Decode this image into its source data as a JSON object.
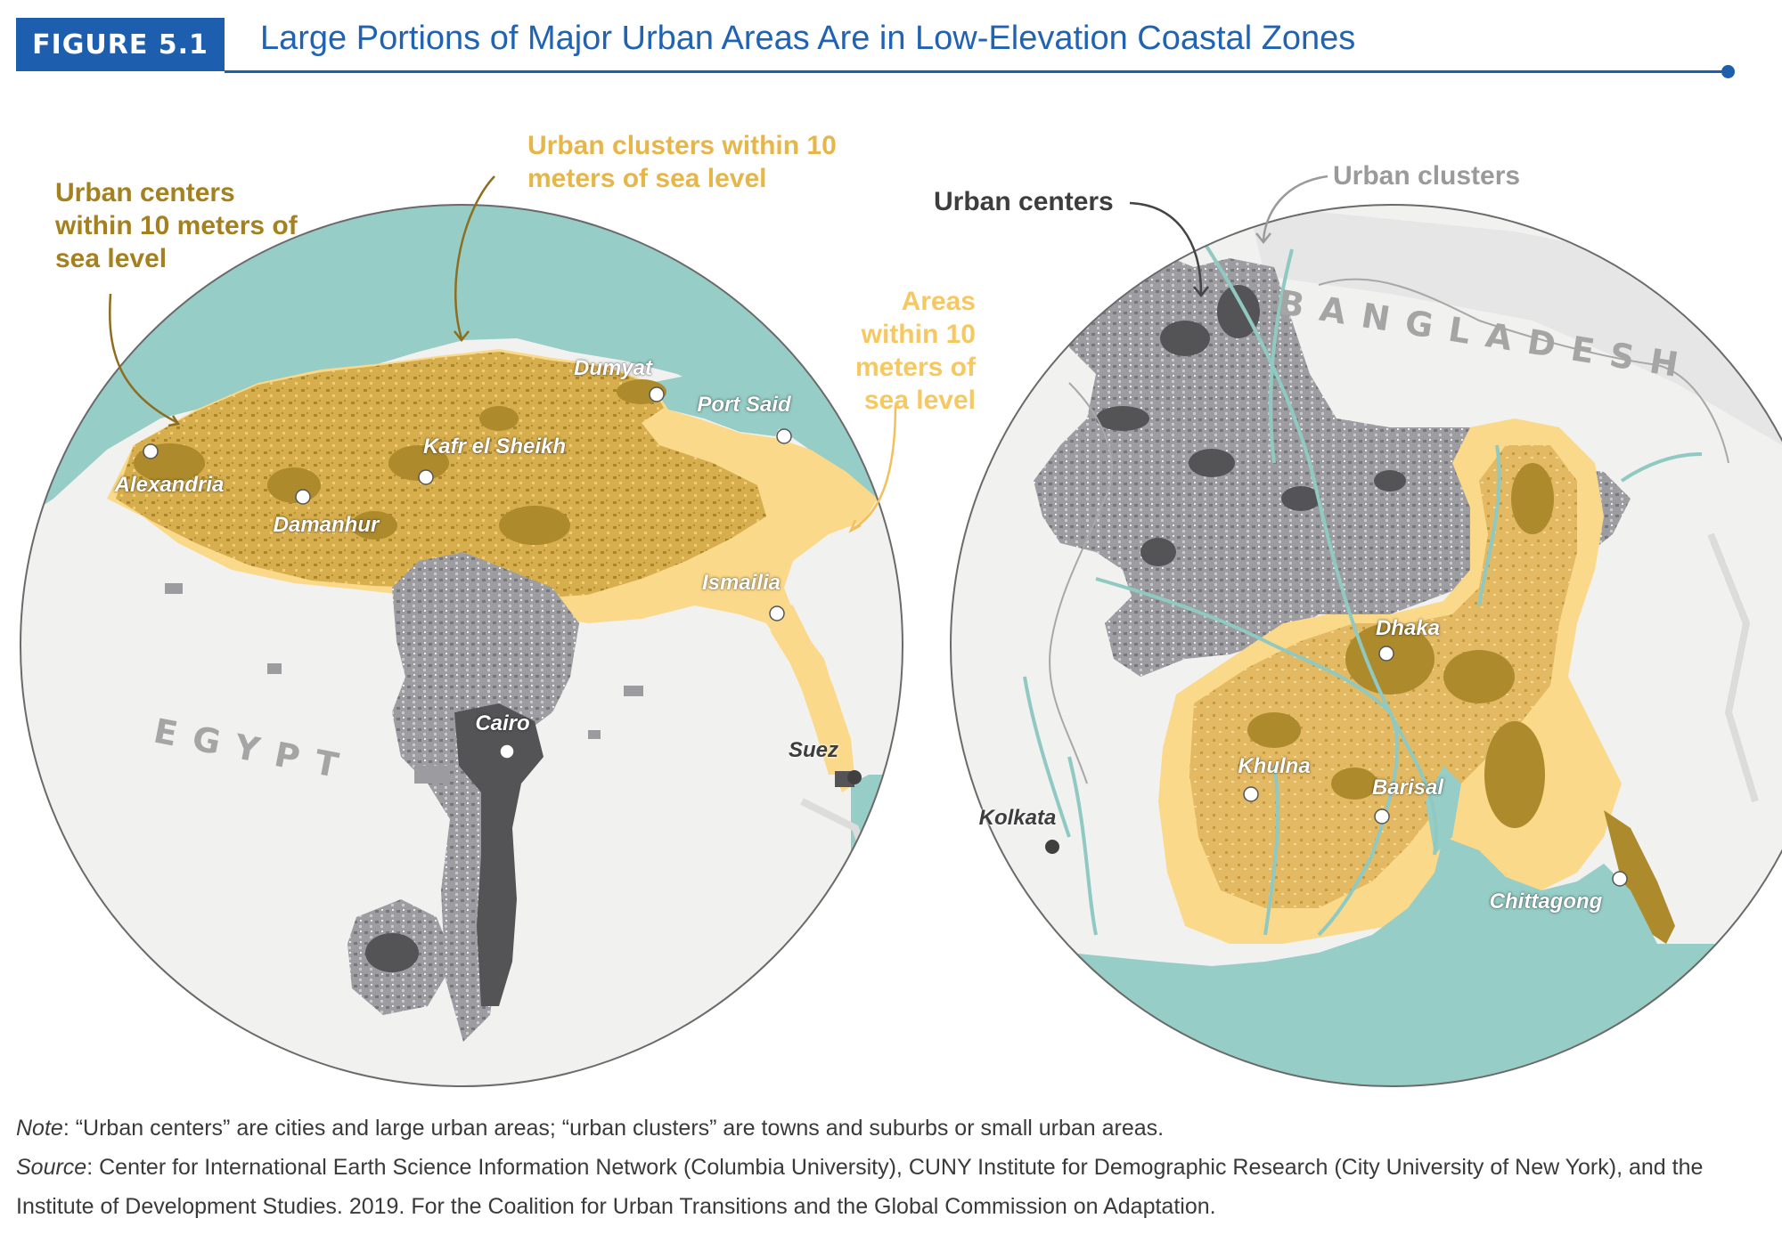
{
  "header": {
    "badge": "FIGURE 5.1",
    "title": "Large Portions of Major Urban Areas Are in Low-Elevation Coastal Zones"
  },
  "colors": {
    "brand_blue": "#1d5fae",
    "sea": "#96cdc6",
    "land": "#f1f1f0",
    "urban_center_low": "#ad8a2c",
    "urban_cluster_low": "#e2b85a",
    "area_low": "#fbd98a",
    "urban_center": "#545456",
    "urban_cluster": "#9c9ca0"
  },
  "egypt_map": {
    "country": "EGYPT",
    "cities": {
      "alexandria": "Alexandria",
      "damanhur": "Damanhur",
      "kafr": "Kafr el Sheikh",
      "dumyat": "Dumyat",
      "port_said": "Port Said",
      "ismailia": "Ismailia",
      "cairo": "Cairo",
      "suez": "Suez"
    },
    "callouts": {
      "centers_low": "Urban centers within 10 meters of sea level",
      "clusters_low": "Urban clusters within 10 meters of sea level",
      "areas_low": "Areas within 10 meters of sea level"
    }
  },
  "bangladesh_map": {
    "country": "BANGLADESH",
    "cities": {
      "dhaka": "Dhaka",
      "khulna": "Khulna",
      "barisal": "Barisal",
      "kolkata": "Kolkata",
      "chittagong": "Chittagong"
    },
    "callouts": {
      "centers": "Urban centers",
      "clusters": "Urban clusters"
    }
  },
  "footer": {
    "note_label": "Note",
    "note_text": ": “Urban centers” are cities and large urban areas; “urban clusters” are towns and suburbs or small urban areas.",
    "source_label": "Source",
    "source_text": ": Center for International Earth Science Information Network (Columbia University), CUNY Institute for Demographic Research (City University of New York), and the Institute of Development Studies. 2019. For the Coalition for Urban Transitions and the Global Commission on Adaptation."
  }
}
